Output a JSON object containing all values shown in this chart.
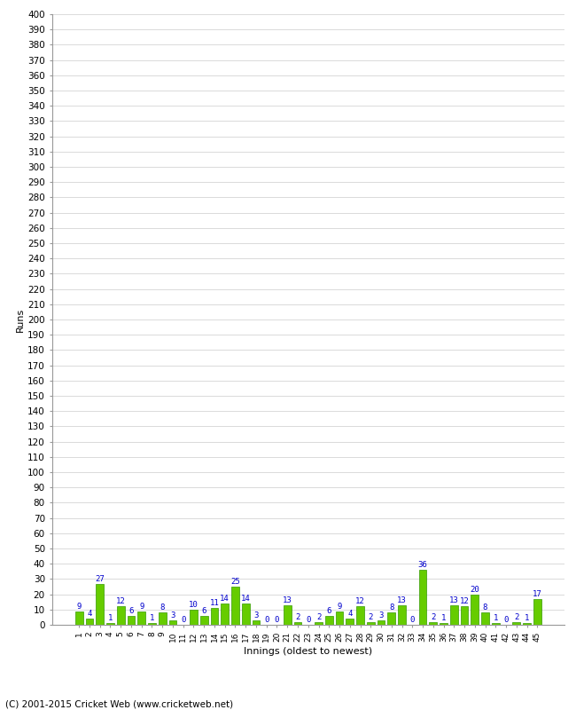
{
  "xlabel": "Innings (oldest to newest)",
  "ylabel": "Runs",
  "footer": "(C) 2001-2015 Cricket Web (www.cricketweb.net)",
  "values": [
    9,
    4,
    27,
    1,
    12,
    6,
    9,
    1,
    8,
    3,
    0,
    10,
    6,
    11,
    14,
    25,
    14,
    3,
    0,
    0,
    13,
    2,
    0,
    2,
    6,
    9,
    4,
    12,
    2,
    3,
    8,
    13,
    0,
    36,
    2,
    1,
    13,
    12,
    20,
    8,
    1,
    0,
    2,
    1,
    17
  ],
  "labels": [
    "1",
    "2",
    "3",
    "4",
    "5",
    "6",
    "7",
    "8",
    "9",
    "10",
    "11",
    "12",
    "13",
    "14",
    "15",
    "16",
    "17",
    "18",
    "19",
    "20",
    "21",
    "22",
    "23",
    "24",
    "25",
    "26",
    "27",
    "28",
    "29",
    "30",
    "31",
    "32",
    "33",
    "34",
    "35",
    "36",
    "37",
    "38",
    "39",
    "40",
    "41",
    "42",
    "43",
    "44",
    "45"
  ],
  "bar_color": "#66cc00",
  "bar_edge_color": "#339900",
  "label_color": "#0000cc",
  "ylim": [
    0,
    400
  ],
  "background_color": "#ffffff",
  "grid_color": "#cccccc",
  "label_fontsize": 6.5,
  "axis_fontsize": 7.5,
  "xlabel_fontsize": 8,
  "ylabel_fontsize": 8,
  "footer_fontsize": 7.5
}
